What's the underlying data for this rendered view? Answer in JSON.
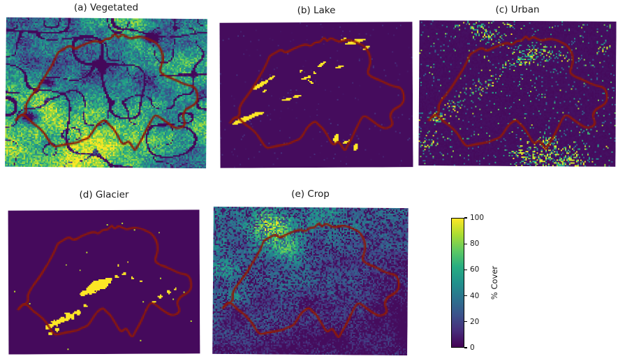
{
  "figure": {
    "background": "#ffffff",
    "border_color": "#8e1a08",
    "panels": [
      {
        "id": "a",
        "label": "(a) Vegetated",
        "type": "vegetated"
      },
      {
        "id": "b",
        "label": "(b) Lake",
        "type": "lake"
      },
      {
        "id": "c",
        "label": "(c) Urban",
        "type": "urban"
      },
      {
        "id": "d",
        "label": "(d) Glacier",
        "type": "glacier"
      },
      {
        "id": "e",
        "label": "(e) Crop",
        "type": "crop"
      }
    ],
    "colorbar": {
      "label": "% Cover",
      "ticks": [
        0,
        20,
        40,
        60,
        80,
        100
      ],
      "min": 0,
      "max": 100,
      "stops": [
        "#440154",
        "#472d7b",
        "#3b528b",
        "#2c728e",
        "#21918c",
        "#27ad81",
        "#5ec962",
        "#aadc32",
        "#fde725"
      ]
    }
  },
  "chart_data": {
    "type": "heatmap",
    "layout": "five map subplots (2 rows) sharing one vertical viridis colorbar",
    "colorbar": {
      "label": "% Cover",
      "range": [
        0,
        100
      ],
      "ticks": [
        0,
        20,
        40,
        60,
        80,
        100
      ],
      "colormap": "viridis"
    },
    "overlay": "Switzerland national border drawn in dark red on every subplot",
    "subplots": [
      {
        "panel": "a",
        "title": "(a) Vegetated",
        "pattern": "mostly high cover 60-100% (yellow/green); low values along alpine ridge lines, valleys and lakes (Geneva, Constance dark)"
      },
      {
        "panel": "b",
        "title": "(b) Lake",
        "pattern": "near 0% everywhere except lakes at ~100%: Geneva, Neuchatel, Biel, Thun, Brienz, Lucerne, Zug, Zurich, Walen, Constance, Maggiore, Lugano"
      },
      {
        "panel": "c",
        "title": "(c) Urban",
        "pattern": "near 0% background with sparse bright speckles clustered at cities: Zurich, Basel, Geneva, Lausanne, Bern, plateau band; dense cluster south of border (Milan area)"
      },
      {
        "panel": "d",
        "title": "(d) Glacier",
        "pattern": "near 0% except ~100% glacier patches in the central Bernese Alps, along the southern Valais chain and in the eastern Alps"
      },
      {
        "panel": "e",
        "title": "(e) Crop",
        "pattern": "low-to-moderate speckled cover (teal) over plateau and surrounding lowlands, near 0% in the Alps (southeast), bright 80-100% patch just north of the border"
      }
    ],
    "outline_normalized": [
      [
        0.045,
        0.7
      ],
      [
        0.075,
        0.655
      ],
      [
        0.105,
        0.64
      ],
      [
        0.098,
        0.585
      ],
      [
        0.125,
        0.53
      ],
      [
        0.16,
        0.47
      ],
      [
        0.193,
        0.4
      ],
      [
        0.225,
        0.33
      ],
      [
        0.25,
        0.262
      ],
      [
        0.257,
        0.23
      ],
      [
        0.292,
        0.205
      ],
      [
        0.321,
        0.183
      ],
      [
        0.34,
        0.212
      ],
      [
        0.373,
        0.187
      ],
      [
        0.4,
        0.17
      ],
      [
        0.425,
        0.159
      ],
      [
        0.455,
        0.15
      ],
      [
        0.47,
        0.168
      ],
      [
        0.495,
        0.135
      ],
      [
        0.52,
        0.14
      ],
      [
        0.541,
        0.099
      ],
      [
        0.558,
        0.135
      ],
      [
        0.576,
        0.104
      ],
      [
        0.6,
        0.125
      ],
      [
        0.623,
        0.135
      ],
      [
        0.655,
        0.12
      ],
      [
        0.692,
        0.127
      ],
      [
        0.72,
        0.145
      ],
      [
        0.745,
        0.159
      ],
      [
        0.774,
        0.206
      ],
      [
        0.785,
        0.284
      ],
      [
        0.762,
        0.348
      ],
      [
        0.785,
        0.379
      ],
      [
        0.82,
        0.395
      ],
      [
        0.843,
        0.41
      ],
      [
        0.875,
        0.43
      ],
      [
        0.901,
        0.442
      ],
      [
        0.948,
        0.458
      ],
      [
        0.959,
        0.545
      ],
      [
        0.93,
        0.583
      ],
      [
        0.901,
        0.599
      ],
      [
        0.878,
        0.646
      ],
      [
        0.901,
        0.709
      ],
      [
        0.855,
        0.741
      ],
      [
        0.81,
        0.7
      ],
      [
        0.785,
        0.678
      ],
      [
        0.76,
        0.65
      ],
      [
        0.739,
        0.646
      ],
      [
        0.715,
        0.709
      ],
      [
        0.681,
        0.803
      ],
      [
        0.66,
        0.85
      ],
      [
        0.646,
        0.89
      ],
      [
        0.625,
        0.84
      ],
      [
        0.611,
        0.819
      ],
      [
        0.588,
        0.85
      ],
      [
        0.565,
        0.8
      ],
      [
        0.553,
        0.772
      ],
      [
        0.53,
        0.725
      ],
      [
        0.505,
        0.7
      ],
      [
        0.495,
        0.678
      ],
      [
        0.46,
        0.709
      ],
      [
        0.435,
        0.76
      ],
      [
        0.414,
        0.803
      ],
      [
        0.38,
        0.82
      ],
      [
        0.355,
        0.835
      ],
      [
        0.32,
        0.843
      ],
      [
        0.297,
        0.85
      ],
      [
        0.265,
        0.858
      ],
      [
        0.239,
        0.866
      ],
      [
        0.216,
        0.819
      ],
      [
        0.193,
        0.772
      ],
      [
        0.158,
        0.725
      ],
      [
        0.13,
        0.7
      ],
      [
        0.112,
        0.678
      ],
      [
        0.088,
        0.646
      ],
      [
        0.066,
        0.66
      ]
    ],
    "lakes_ellipses": [
      [
        0.115,
        0.665,
        0.058,
        0.016,
        -28
      ],
      [
        0.182,
        0.628,
        0.046,
        0.013,
        -22
      ],
      [
        0.205,
        0.425,
        0.056,
        0.012,
        -38
      ],
      [
        0.262,
        0.378,
        0.024,
        0.008,
        -38
      ],
      [
        0.228,
        0.468,
        0.015,
        0.007,
        -30
      ],
      [
        0.345,
        0.525,
        0.026,
        0.008,
        -15
      ],
      [
        0.395,
        0.505,
        0.022,
        0.007,
        -8
      ],
      [
        0.443,
        0.378,
        0.03,
        0.009,
        -25
      ],
      [
        0.468,
        0.405,
        0.018,
        0.006,
        40
      ],
      [
        0.488,
        0.345,
        0.012,
        0.006,
        75
      ],
      [
        0.525,
        0.285,
        0.032,
        0.008,
        -42
      ],
      [
        0.615,
        0.303,
        0.022,
        0.006,
        -10
      ],
      [
        0.7,
        0.13,
        0.058,
        0.014,
        -20
      ],
      [
        0.757,
        0.172,
        0.022,
        0.008,
        -45
      ],
      [
        0.638,
        0.112,
        0.02,
        0.006,
        -25
      ],
      [
        0.598,
        0.795,
        0.012,
        0.034,
        8
      ],
      [
        0.652,
        0.82,
        0.022,
        0.008,
        -28
      ],
      [
        0.7,
        0.855,
        0.011,
        0.028,
        14
      ],
      [
        0.418,
        0.33,
        0.012,
        0.005,
        -30
      ]
    ],
    "urban_clusters": [
      [
        0.55,
        0.225,
        0.055,
        1.0
      ],
      [
        0.62,
        0.2,
        0.04,
        0.6
      ],
      [
        0.37,
        0.105,
        0.045,
        0.9
      ],
      [
        0.7,
        0.225,
        0.04,
        0.6
      ],
      [
        0.085,
        0.665,
        0.04,
        1.0
      ],
      [
        0.17,
        0.575,
        0.035,
        0.8
      ],
      [
        0.36,
        0.42,
        0.04,
        0.7
      ],
      [
        0.3,
        0.46,
        0.03,
        0.5
      ],
      [
        0.45,
        0.31,
        0.035,
        0.6
      ],
      [
        0.5,
        0.275,
        0.03,
        0.5
      ],
      [
        0.25,
        0.5,
        0.03,
        0.4
      ],
      [
        0.63,
        0.95,
        0.11,
        1.0
      ],
      [
        0.78,
        0.97,
        0.09,
        0.8
      ],
      [
        0.52,
        0.93,
        0.05,
        0.5
      ],
      [
        0.28,
        0.04,
        0.05,
        0.7
      ],
      [
        0.46,
        0.03,
        0.04,
        0.5
      ],
      [
        0.03,
        0.84,
        0.05,
        0.6
      ],
      [
        0.93,
        0.16,
        0.04,
        0.4
      ],
      [
        0.85,
        0.75,
        0.03,
        0.3
      ],
      [
        0.66,
        0.82,
        0.035,
        0.6
      ]
    ],
    "glacier_blobs": [
      [
        0.455,
        0.525,
        0.04
      ],
      [
        0.495,
        0.505,
        0.028
      ],
      [
        0.42,
        0.555,
        0.022
      ],
      [
        0.385,
        0.575,
        0.018
      ],
      [
        0.525,
        0.48,
        0.016
      ],
      [
        0.56,
        0.46,
        0.013
      ],
      [
        0.6,
        0.44,
        0.012
      ],
      [
        0.645,
        0.47,
        0.01
      ],
      [
        0.69,
        0.49,
        0.009
      ],
      [
        0.205,
        0.805,
        0.02
      ],
      [
        0.24,
        0.78,
        0.024
      ],
      [
        0.28,
        0.755,
        0.02
      ],
      [
        0.32,
        0.735,
        0.024
      ],
      [
        0.36,
        0.705,
        0.02
      ],
      [
        0.305,
        0.715,
        0.014
      ],
      [
        0.25,
        0.825,
        0.014
      ],
      [
        0.215,
        0.855,
        0.012
      ],
      [
        0.4,
        0.66,
        0.013
      ],
      [
        0.79,
        0.6,
        0.018
      ],
      [
        0.835,
        0.565,
        0.014
      ],
      [
        0.755,
        0.635,
        0.012
      ],
      [
        0.87,
        0.545,
        0.009
      ],
      [
        0.57,
        0.38,
        0.008
      ],
      [
        0.62,
        0.36,
        0.007
      ]
    ]
  }
}
